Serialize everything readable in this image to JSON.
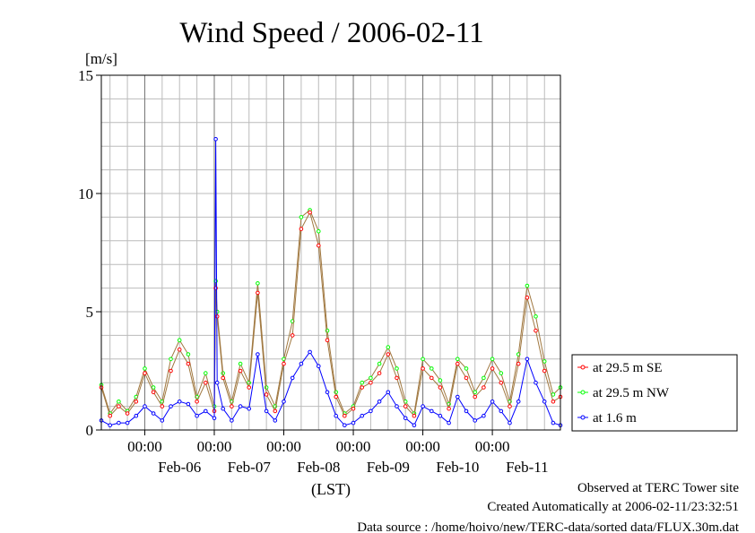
{
  "chart_data": {
    "type": "line",
    "title": "Wind Speed / 2006-02-11",
    "ylabel": "[m/s]",
    "xlabel": "(LST)",
    "ylim": [
      0,
      15
    ],
    "yticks": [
      0,
      5,
      10,
      15
    ],
    "xlim": [
      "2006-02-05 09:00",
      "2006-02-11 23:30"
    ],
    "x_ticks": [
      "2006-02-06 00:00",
      "2006-02-07 00:00",
      "2006-02-08 00:00",
      "2006-02-09 00:00",
      "2006-02-10 00:00",
      "2006-02-11 00:00"
    ],
    "x_tick_label": "00:00",
    "x_day_labels": [
      {
        "date": "2006-02-06 12:00",
        "label": "Feb-06"
      },
      {
        "date": "2006-02-07 12:00",
        "label": "Feb-07"
      },
      {
        "date": "2006-02-08 12:00",
        "label": "Feb-08"
      },
      {
        "date": "2006-02-09 12:00",
        "label": "Feb-09"
      },
      {
        "date": "2006-02-10 12:00",
        "label": "Feb-10"
      },
      {
        "date": "2006-02-11 12:00",
        "label": "Feb-11"
      }
    ],
    "grid": true,
    "legend_position": "right",
    "series": [
      {
        "name": "at 29.5 m SE",
        "color": "#ff0000",
        "x": [
          "2006-02-05 09:00",
          "2006-02-05 12:00",
          "2006-02-05 15:00",
          "2006-02-05 18:00",
          "2006-02-05 21:00",
          "2006-02-06 00:00",
          "2006-02-06 03:00",
          "2006-02-06 06:00",
          "2006-02-06 09:00",
          "2006-02-06 12:00",
          "2006-02-06 15:00",
          "2006-02-06 18:00",
          "2006-02-06 21:00",
          "2006-02-07 00:00",
          "2006-02-07 00:30",
          "2006-02-07 01:00",
          "2006-02-07 03:00",
          "2006-02-07 06:00",
          "2006-02-07 09:00",
          "2006-02-07 12:00",
          "2006-02-07 15:00",
          "2006-02-07 18:00",
          "2006-02-07 21:00",
          "2006-02-08 00:00",
          "2006-02-08 03:00",
          "2006-02-08 06:00",
          "2006-02-08 09:00",
          "2006-02-08 12:00",
          "2006-02-08 15:00",
          "2006-02-08 18:00",
          "2006-02-08 21:00",
          "2006-02-09 00:00",
          "2006-02-09 03:00",
          "2006-02-09 06:00",
          "2006-02-09 09:00",
          "2006-02-09 12:00",
          "2006-02-09 15:00",
          "2006-02-09 18:00",
          "2006-02-09 21:00",
          "2006-02-10 00:00",
          "2006-02-10 03:00",
          "2006-02-10 06:00",
          "2006-02-10 09:00",
          "2006-02-10 12:00",
          "2006-02-10 15:00",
          "2006-02-10 18:00",
          "2006-02-10 21:00",
          "2006-02-11 00:00",
          "2006-02-11 03:00",
          "2006-02-11 06:00",
          "2006-02-11 09:00",
          "2006-02-11 12:00",
          "2006-02-11 15:00",
          "2006-02-11 18:00",
          "2006-02-11 21:00",
          "2006-02-11 23:30"
        ],
        "values": [
          1.8,
          0.6,
          1.0,
          0.7,
          1.2,
          2.4,
          1.6,
          1.0,
          2.5,
          3.4,
          2.8,
          1.2,
          2.0,
          0.8,
          6.0,
          4.8,
          2.2,
          1.0,
          2.5,
          1.8,
          5.8,
          1.5,
          0.8,
          2.8,
          4.0,
          8.5,
          9.2,
          7.8,
          3.8,
          1.4,
          0.6,
          0.9,
          1.8,
          2.0,
          2.4,
          3.2,
          2.2,
          1.0,
          0.6,
          2.6,
          2.2,
          1.8,
          0.9,
          2.8,
          2.2,
          1.4,
          1.8,
          2.6,
          2.0,
          1.0,
          2.8,
          5.6,
          4.2,
          2.5,
          1.2,
          1.4
        ]
      },
      {
        "name": "at 29.5 m NW",
        "color": "#00ff00",
        "x": [
          "2006-02-05 09:00",
          "2006-02-05 12:00",
          "2006-02-05 15:00",
          "2006-02-05 18:00",
          "2006-02-05 21:00",
          "2006-02-06 00:00",
          "2006-02-06 03:00",
          "2006-02-06 06:00",
          "2006-02-06 09:00",
          "2006-02-06 12:00",
          "2006-02-06 15:00",
          "2006-02-06 18:00",
          "2006-02-06 21:00",
          "2006-02-07 00:00",
          "2006-02-07 00:30",
          "2006-02-07 01:00",
          "2006-02-07 03:00",
          "2006-02-07 06:00",
          "2006-02-07 09:00",
          "2006-02-07 12:00",
          "2006-02-07 15:00",
          "2006-02-07 18:00",
          "2006-02-07 21:00",
          "2006-02-08 00:00",
          "2006-02-08 03:00",
          "2006-02-08 06:00",
          "2006-02-08 09:00",
          "2006-02-08 12:00",
          "2006-02-08 15:00",
          "2006-02-08 18:00",
          "2006-02-08 21:00",
          "2006-02-09 00:00",
          "2006-02-09 03:00",
          "2006-02-09 06:00",
          "2006-02-09 09:00",
          "2006-02-09 12:00",
          "2006-02-09 15:00",
          "2006-02-09 18:00",
          "2006-02-09 21:00",
          "2006-02-10 00:00",
          "2006-02-10 03:00",
          "2006-02-10 06:00",
          "2006-02-10 09:00",
          "2006-02-10 12:00",
          "2006-02-10 15:00",
          "2006-02-10 18:00",
          "2006-02-10 21:00",
          "2006-02-11 00:00",
          "2006-02-11 03:00",
          "2006-02-11 06:00",
          "2006-02-11 09:00",
          "2006-02-11 12:00",
          "2006-02-11 15:00",
          "2006-02-11 18:00",
          "2006-02-11 21:00",
          "2006-02-11 23:30"
        ],
        "values": [
          1.9,
          0.7,
          1.2,
          0.8,
          1.4,
          2.6,
          1.8,
          1.2,
          3.0,
          3.8,
          3.2,
          1.4,
          2.4,
          1.0,
          6.3,
          5.0,
          2.4,
          1.2,
          2.8,
          2.0,
          6.2,
          1.8,
          1.0,
          3.0,
          4.6,
          9.0,
          9.3,
          8.4,
          4.2,
          1.6,
          0.7,
          1.0,
          2.0,
          2.2,
          2.8,
          3.5,
          2.6,
          1.2,
          0.7,
          3.0,
          2.6,
          2.1,
          1.1,
          3.0,
          2.6,
          1.6,
          2.2,
          3.0,
          2.4,
          1.2,
          3.2,
          6.1,
          4.8,
          2.9,
          1.5,
          1.8
        ]
      },
      {
        "name": "at 1.6 m",
        "color": "#0000ff",
        "x": [
          "2006-02-05 09:00",
          "2006-02-05 12:00",
          "2006-02-05 15:00",
          "2006-02-05 18:00",
          "2006-02-05 21:00",
          "2006-02-06 00:00",
          "2006-02-06 03:00",
          "2006-02-06 06:00",
          "2006-02-06 09:00",
          "2006-02-06 12:00",
          "2006-02-06 15:00",
          "2006-02-06 18:00",
          "2006-02-06 21:00",
          "2006-02-07 00:00",
          "2006-02-07 00:30",
          "2006-02-07 01:00",
          "2006-02-07 03:00",
          "2006-02-07 06:00",
          "2006-02-07 09:00",
          "2006-02-07 12:00",
          "2006-02-07 15:00",
          "2006-02-07 18:00",
          "2006-02-07 21:00",
          "2006-02-08 00:00",
          "2006-02-08 03:00",
          "2006-02-08 06:00",
          "2006-02-08 09:00",
          "2006-02-08 12:00",
          "2006-02-08 15:00",
          "2006-02-08 18:00",
          "2006-02-08 21:00",
          "2006-02-09 00:00",
          "2006-02-09 03:00",
          "2006-02-09 06:00",
          "2006-02-09 09:00",
          "2006-02-09 12:00",
          "2006-02-09 15:00",
          "2006-02-09 18:00",
          "2006-02-09 21:00",
          "2006-02-10 00:00",
          "2006-02-10 03:00",
          "2006-02-10 06:00",
          "2006-02-10 09:00",
          "2006-02-10 12:00",
          "2006-02-10 15:00",
          "2006-02-10 18:00",
          "2006-02-10 21:00",
          "2006-02-11 00:00",
          "2006-02-11 03:00",
          "2006-02-11 06:00",
          "2006-02-11 09:00",
          "2006-02-11 12:00",
          "2006-02-11 15:00",
          "2006-02-11 18:00",
          "2006-02-11 21:00",
          "2006-02-11 23:30"
        ],
        "values": [
          0.4,
          0.2,
          0.3,
          0.3,
          0.6,
          1.0,
          0.7,
          0.4,
          1.0,
          1.2,
          1.1,
          0.6,
          0.8,
          0.5,
          12.3,
          2.0,
          0.9,
          0.4,
          1.0,
          0.9,
          3.2,
          0.8,
          0.4,
          1.2,
          2.2,
          2.8,
          3.3,
          2.7,
          1.6,
          0.6,
          0.2,
          0.3,
          0.6,
          0.8,
          1.2,
          1.6,
          1.0,
          0.5,
          0.2,
          1.0,
          0.8,
          0.6,
          0.3,
          1.4,
          0.8,
          0.4,
          0.6,
          1.2,
          0.8,
          0.3,
          1.2,
          3.0,
          2.0,
          1.2,
          0.3,
          0.2
        ]
      }
    ]
  },
  "footer": {
    "line1": "Observed at TERC Tower site",
    "line2": "Created Automatically at 2006-02-11/23:32:51",
    "line3": "Data source : /home/hoivo/new/TERC-data/sorted  data/FLUX.30m.dat"
  }
}
